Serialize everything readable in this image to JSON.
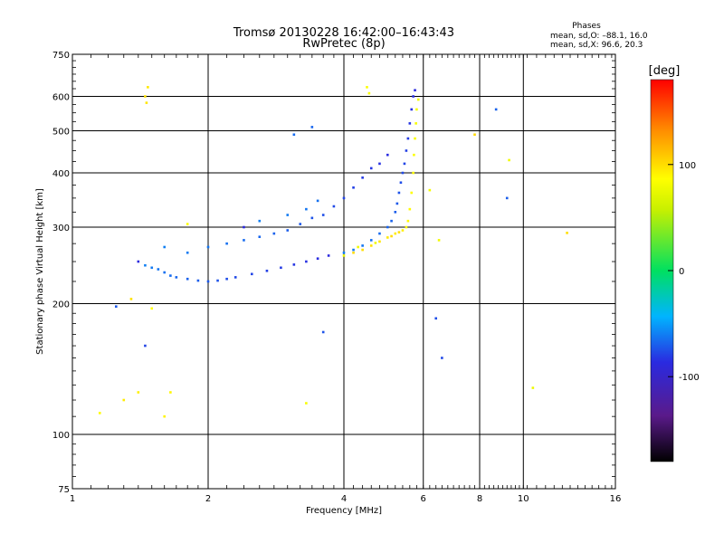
{
  "header": {
    "title_line1": "Tromsø 20130228 16:42:00–16:43:43",
    "title_line2": "RwPretec (8p)"
  },
  "stats": {
    "heading": "Phases",
    "line_o": "mean, sd,O: –88.1, 16.0",
    "line_x": "mean, sd,X:  96.6, 20.3"
  },
  "chart_data": {
    "type": "scatter",
    "xlabel": "Frequency [MHz]",
    "ylabel": "Stationary phase Virtual Height [km]",
    "xscale": "log",
    "yscale": "log",
    "xlim": [
      1,
      16
    ],
    "ylim": [
      75,
      750
    ],
    "xticks": [
      1,
      2,
      4,
      6,
      8,
      10,
      16
    ],
    "yticks": [
      75,
      100,
      200,
      300,
      400,
      500,
      600,
      750
    ],
    "grid": true,
    "x_gridlines": [
      2,
      4,
      6,
      8,
      10
    ],
    "y_gridlines": [
      100,
      200,
      300,
      400,
      500,
      600
    ],
    "colorbar": {
      "label": "[deg]",
      "range": [
        -180,
        180
      ],
      "ticks": [
        100,
        0,
        -100
      ],
      "colormap": "rainbow: black (-180), purple, blue, cyan, green (0), yellow, orange, red (+180)"
    },
    "series": [
      {
        "mode": "O",
        "mean_phase": -88.1,
        "points": [
          [
            1.4,
            250
          ],
          [
            1.45,
            245
          ],
          [
            1.5,
            242
          ],
          [
            1.55,
            240
          ],
          [
            1.6,
            236
          ],
          [
            1.65,
            232
          ],
          [
            1.7,
            230
          ],
          [
            1.8,
            228
          ],
          [
            1.9,
            226
          ],
          [
            2.0,
            225
          ],
          [
            2.1,
            226
          ],
          [
            2.2,
            228
          ],
          [
            2.3,
            230
          ],
          [
            2.5,
            234
          ],
          [
            2.7,
            238
          ],
          [
            2.9,
            242
          ],
          [
            3.1,
            246
          ],
          [
            3.3,
            250
          ],
          [
            3.5,
            254
          ],
          [
            3.7,
            258
          ],
          [
            4.0,
            262
          ],
          [
            4.2,
            266
          ],
          [
            4.4,
            272
          ],
          [
            4.6,
            280
          ],
          [
            4.8,
            290
          ],
          [
            5.0,
            300
          ],
          [
            5.1,
            310
          ],
          [
            5.2,
            325
          ],
          [
            5.25,
            340
          ],
          [
            5.3,
            360
          ],
          [
            5.35,
            380
          ],
          [
            5.4,
            400
          ],
          [
            5.45,
            420
          ],
          [
            5.5,
            450
          ],
          [
            5.55,
            480
          ],
          [
            5.6,
            520
          ],
          [
            5.65,
            560
          ],
          [
            5.7,
            600
          ],
          [
            5.75,
            620
          ],
          [
            1.6,
            270
          ],
          [
            1.8,
            262
          ],
          [
            2.0,
            270
          ],
          [
            2.2,
            275
          ],
          [
            2.4,
            280
          ],
          [
            2.6,
            285
          ],
          [
            2.8,
            290
          ],
          [
            3.0,
            295
          ],
          [
            3.2,
            305
          ],
          [
            3.4,
            315
          ],
          [
            3.6,
            320
          ],
          [
            3.8,
            335
          ],
          [
            4.0,
            350
          ],
          [
            4.2,
            370
          ],
          [
            4.4,
            390
          ],
          [
            4.6,
            410
          ],
          [
            4.8,
            420
          ],
          [
            5.0,
            440
          ],
          [
            2.4,
            300
          ],
          [
            2.6,
            310
          ],
          [
            3.0,
            320
          ],
          [
            3.3,
            330
          ],
          [
            3.5,
            345
          ],
          [
            3.1,
            490
          ],
          [
            3.4,
            510
          ],
          [
            8.7,
            560
          ],
          [
            9.2,
            350
          ],
          [
            1.25,
            197
          ],
          [
            3.6,
            172
          ],
          [
            6.4,
            185
          ],
          [
            6.6,
            150
          ],
          [
            1.45,
            160
          ]
        ]
      },
      {
        "mode": "X",
        "mean_phase": 96.6,
        "points": [
          [
            4.0,
            258
          ],
          [
            4.2,
            262
          ],
          [
            4.4,
            266
          ],
          [
            4.6,
            272
          ],
          [
            4.8,
            278
          ],
          [
            5.0,
            284
          ],
          [
            5.2,
            290
          ],
          [
            5.4,
            295
          ],
          [
            5.5,
            300
          ],
          [
            5.55,
            310
          ],
          [
            5.6,
            330
          ],
          [
            5.65,
            360
          ],
          [
            5.7,
            400
          ],
          [
            5.72,
            440
          ],
          [
            5.75,
            480
          ],
          [
            5.78,
            520
          ],
          [
            5.8,
            560
          ],
          [
            5.85,
            590
          ],
          [
            4.3,
            270
          ],
          [
            4.7,
            276
          ],
          [
            5.1,
            286
          ],
          [
            5.3,
            292
          ],
          [
            1.45,
            600
          ],
          [
            1.46,
            580
          ],
          [
            1.47,
            630
          ],
          [
            1.3,
            120
          ],
          [
            1.4,
            125
          ],
          [
            1.6,
            110
          ],
          [
            1.65,
            125
          ],
          [
            1.15,
            112
          ],
          [
            1.5,
            195
          ],
          [
            1.8,
            305
          ],
          [
            4.5,
            630
          ],
          [
            4.55,
            610
          ],
          [
            3.3,
            118
          ],
          [
            6.2,
            365
          ],
          [
            6.5,
            280
          ],
          [
            9.3,
            428
          ],
          [
            10.5,
            128
          ],
          [
            7.8,
            490
          ],
          [
            12.5,
            291
          ],
          [
            1.35,
            205
          ]
        ]
      }
    ]
  }
}
